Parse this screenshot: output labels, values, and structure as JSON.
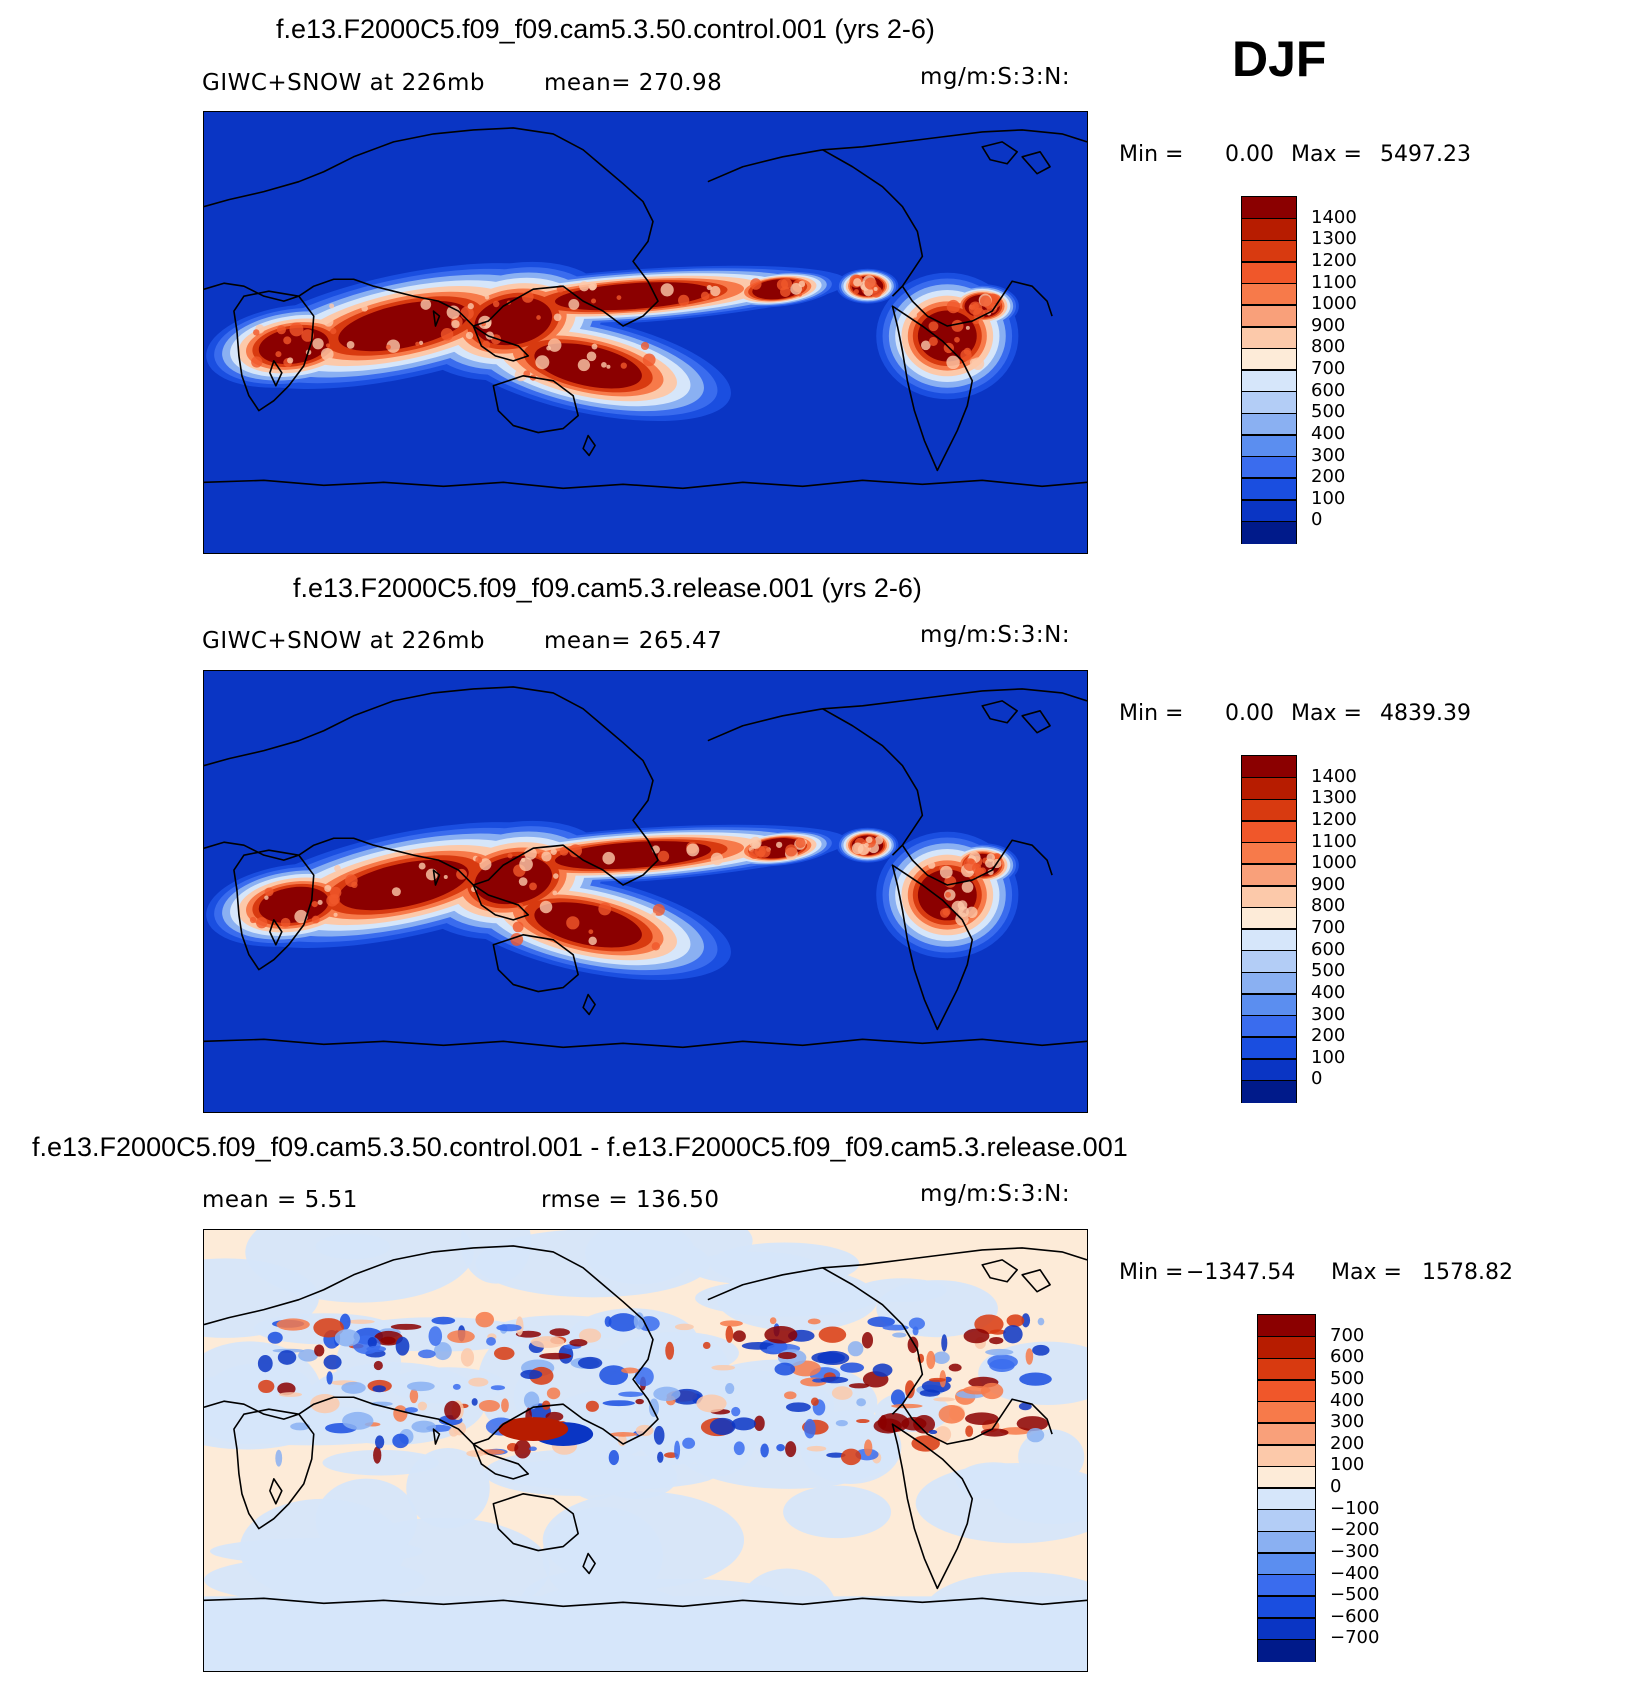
{
  "season_label": "DJF",
  "panels": [
    {
      "id": "top",
      "title": "f.e13.F2000C5.f09_f09.cam5.3.50.control.001 (yrs 2-6)",
      "left_label": "GIWC+SNOW at 226mb",
      "mid_label": "mean= 270.98",
      "units": "mg/m:S:3:N:",
      "stats_min_label": "Min =",
      "stats_min_value": "0.00",
      "stats_max_label": "Max =",
      "stats_max_value": "5497.23",
      "colorbar": {
        "labels": [
          "1400",
          "1300",
          "1200",
          "1100",
          "1000",
          "900",
          "800",
          "700",
          "600",
          "500",
          "400",
          "300",
          "200",
          "100",
          "0"
        ],
        "colors": [
          "#8b0000",
          "#b71c00",
          "#d83a10",
          "#f0572a",
          "#f77a4a",
          "#f9a07a",
          "#fcc9aa",
          "#fdebd8",
          "#d6e6fa",
          "#b3cdf6",
          "#8ab0f2",
          "#5b8ef0",
          "#3a6cee",
          "#1a4ee0",
          "#0a35c4",
          "#001a8a"
        ]
      },
      "map_type": "absolute"
    },
    {
      "id": "middle",
      "title": "f.e13.F2000C5.f09_f09.cam5.3.release.001 (yrs 2-6)",
      "left_label": "GIWC+SNOW at 226mb",
      "mid_label": "mean= 265.47",
      "units": "mg/m:S:3:N:",
      "stats_min_label": "Min =",
      "stats_min_value": "0.00",
      "stats_max_label": "Max =",
      "stats_max_value": "4839.39",
      "colorbar": {
        "labels": [
          "1400",
          "1300",
          "1200",
          "1100",
          "1000",
          "900",
          "800",
          "700",
          "600",
          "500",
          "400",
          "300",
          "200",
          "100",
          "0"
        ],
        "colors": [
          "#8b0000",
          "#b71c00",
          "#d83a10",
          "#f0572a",
          "#f77a4a",
          "#f9a07a",
          "#fcc9aa",
          "#fdebd8",
          "#d6e6fa",
          "#b3cdf6",
          "#8ab0f2",
          "#5b8ef0",
          "#3a6cee",
          "#1a4ee0",
          "#0a35c4",
          "#001a8a"
        ]
      },
      "map_type": "absolute"
    },
    {
      "id": "bottom",
      "title": "f.e13.F2000C5.f09_f09.cam5.3.50.control.001 - f.e13.F2000C5.f09_f09.cam5.3.release.001",
      "left_label": "mean =    5.51",
      "mid_label": "rmse = 136.50",
      "units": "mg/m:S:3:N:",
      "stats_min_label": "Min =",
      "stats_min_value": "−1347.54",
      "stats_max_label": "Max =",
      "stats_max_value": "1578.82",
      "colorbar": {
        "labels": [
          "700",
          "600",
          "500",
          "400",
          "300",
          "200",
          "100",
          "0",
          "−100",
          "−200",
          "−300",
          "−400",
          "−500",
          "−600",
          "−700"
        ],
        "colors": [
          "#8b0000",
          "#b71c00",
          "#d83a10",
          "#f0572a",
          "#f77a4a",
          "#f9a07a",
          "#fcc9aa",
          "#fdebd8",
          "#d6e6fa",
          "#b3cdf6",
          "#8ab0f2",
          "#5b8ef0",
          "#3a6cee",
          "#1a4ee0",
          "#0a35c4",
          "#001a8a"
        ]
      },
      "map_type": "difference"
    }
  ]
}
